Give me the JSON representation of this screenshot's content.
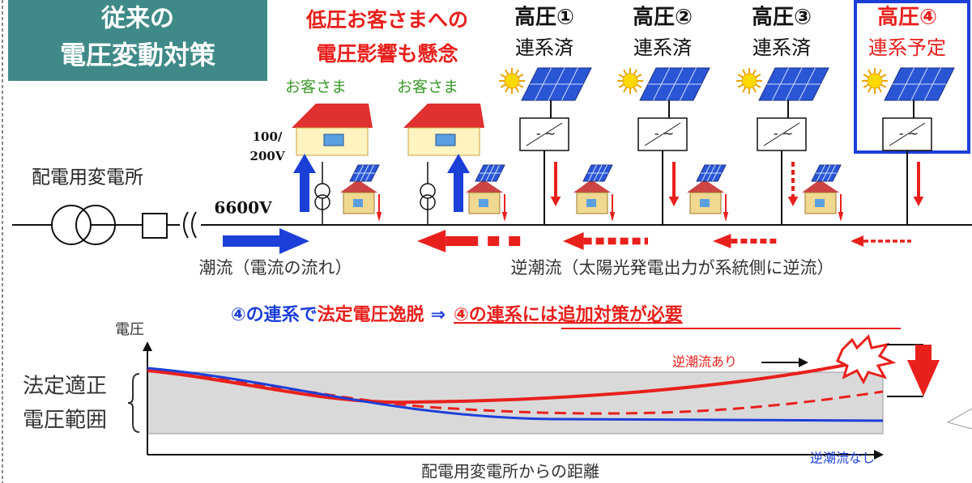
{
  "title": [
    "従来の",
    "電圧変動対策"
  ],
  "concern": [
    "低圧お客さまへの",
    "電圧影響も懸念"
  ],
  "generators": [
    {
      "name": "高圧①",
      "status": "連系済"
    },
    {
      "name": "高圧②",
      "status": "連系済"
    },
    {
      "name": "高圧③",
      "status": "連系済"
    },
    {
      "name": "高圧④",
      "status": "連系予定"
    }
  ],
  "customers": [
    "お客さま",
    "お客さま"
  ],
  "low_voltage": [
    "100/",
    "200V"
  ],
  "substation": "配電用変電所",
  "high_voltage": "6600V",
  "forward_flow": "潮流（電流の流れ）",
  "reverse_flow": "逆潮流（太陽光発電出力が系統側に逆流）",
  "headline": {
    "part1": "④の連系で",
    "part2": "法定電圧逸脱",
    "arrow": "⇒",
    "part3": "④の連系には追加対策が必要"
  },
  "graph": {
    "y_label": "電圧",
    "range_label": [
      "法定適正",
      "電圧範囲"
    ],
    "with_reverse": "逆潮流あり",
    "without_reverse": "逆潮流なし",
    "x_label": "配電用変電所からの距離"
  }
}
